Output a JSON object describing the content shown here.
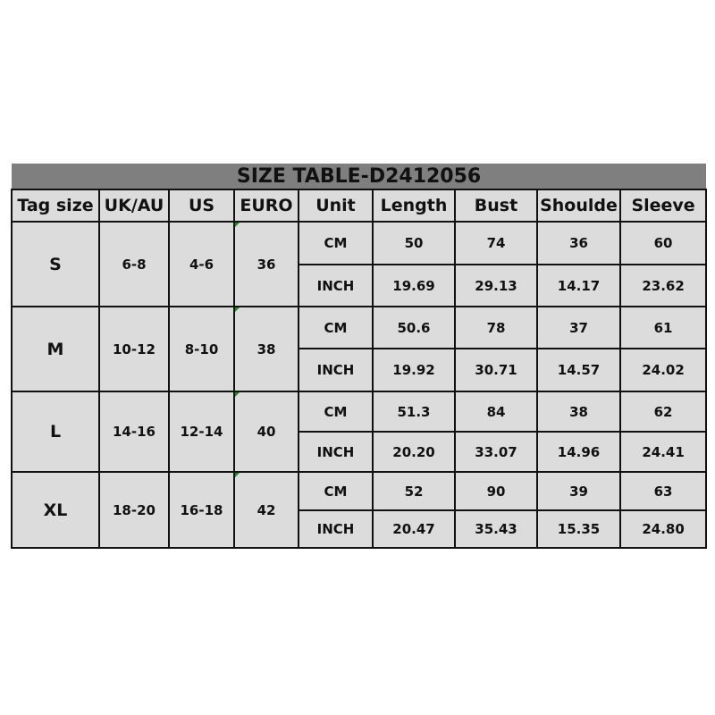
{
  "title": "SIZE TABLE-D2412056",
  "headers": [
    "Tag size",
    "UK/AU",
    "US",
    "EURO",
    "Unit",
    "Length",
    "Bust",
    "Shoulde",
    "Sleeve"
  ],
  "rows": [
    {
      "tag": "S",
      "uk": "6-8",
      "us": "4-6",
      "euro": "36",
      "cm": [
        "CM",
        "50",
        "74",
        "36",
        "60"
      ],
      "inch": [
        "INCH",
        "19.69",
        "29.13",
        "14.17",
        "23.62"
      ]
    },
    {
      "tag": "M",
      "uk": "10-12",
      "us": "8-10",
      "euro": "38",
      "cm": [
        "CM",
        "50.6",
        "78",
        "37",
        "61"
      ],
      "inch": [
        "INCH",
        "19.92",
        "30.71",
        "14.57",
        "24.02"
      ]
    },
    {
      "tag": "L",
      "uk": "14-16",
      "us": "12-14",
      "euro": "40",
      "cm": [
        "CM",
        "51.3",
        "84",
        "38",
        "62"
      ],
      "inch": [
        "INCH",
        "20.20",
        "33.07",
        "14.96",
        "24.41"
      ]
    },
    {
      "tag": "XL",
      "uk": "18-20",
      "us": "16-18",
      "euro": "42",
      "cm": [
        "CM",
        "52",
        "90",
        "39",
        "63"
      ],
      "inch": [
        "INCH",
        "20.47",
        "35.43",
        "15.35",
        "24.80"
      ]
    }
  ],
  "colors": {
    "title_bg": "#7f7f7f",
    "cell_bg": "#dcdcdc",
    "corner_mark": "#1a8a1a"
  }
}
